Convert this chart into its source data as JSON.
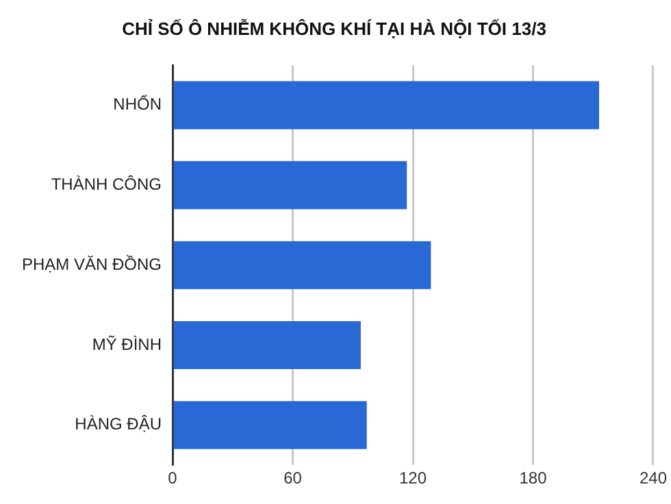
{
  "chart_data": {
    "type": "bar",
    "orientation": "horizontal",
    "title": "CHỈ SỐ Ô NHIỄM KHÔNG KHÍ TẠI HÀ NỘI TỐI 13/3",
    "categories": [
      "NHỔN",
      "THÀNH CÔNG",
      "PHẠM VĂN ĐỒNG",
      "MỸ ĐÌNH",
      "HÀNG ĐẬU"
    ],
    "values": [
      213,
      117,
      129,
      94,
      97
    ],
    "color": "#2a68d6",
    "xlim": [
      0,
      240
    ],
    "xticks": [
      0,
      60,
      120,
      180,
      240
    ],
    "grid": "x",
    "legend": false
  }
}
